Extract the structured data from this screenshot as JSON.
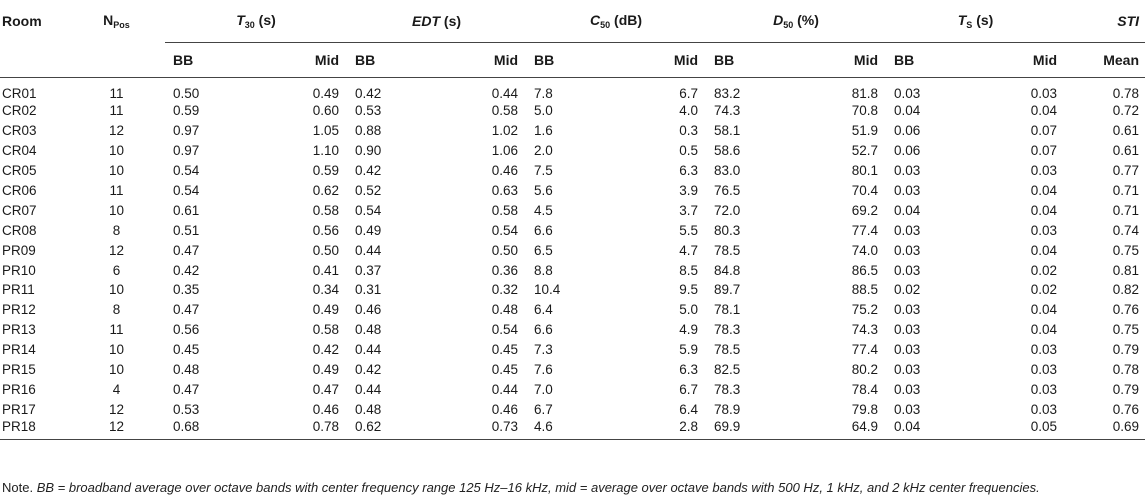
{
  "headers": {
    "room": "Room",
    "npos_main": "N",
    "npos_sub": "Pos",
    "groups": [
      {
        "key": "t30",
        "sym": "T",
        "sub": "30",
        "unit": " (s)",
        "italic": true
      },
      {
        "key": "edt",
        "sym": "EDT",
        "sub": "",
        "unit": " (s)",
        "italic": true
      },
      {
        "key": "c50",
        "sym": "C",
        "sub": "50",
        "unit": " (dB)",
        "italic": true
      },
      {
        "key": "d50",
        "sym": "D",
        "sub": "50",
        "unit": " (%)",
        "italic": true
      },
      {
        "key": "ts",
        "sym": "T",
        "sub": "S",
        "unit": " (s)",
        "italic": true
      }
    ],
    "sti": "STI",
    "bb": "BB",
    "mid": "Mid",
    "mean": "Mean"
  },
  "rows": [
    [
      "CR01",
      "11",
      "0.50",
      "0.49",
      "0.42",
      "0.44",
      "7.8",
      "6.7",
      "83.2",
      "81.8",
      "0.03",
      "0.03",
      "0.78"
    ],
    [
      "CR02",
      "11",
      "0.59",
      "0.60",
      "0.53",
      "0.58",
      "5.0",
      "4.0",
      "74.3",
      "70.8",
      "0.04",
      "0.04",
      "0.72"
    ],
    [
      "CR03",
      "12",
      "0.97",
      "1.05",
      "0.88",
      "1.02",
      "1.6",
      "0.3",
      "58.1",
      "51.9",
      "0.06",
      "0.07",
      "0.61"
    ],
    [
      "CR04",
      "10",
      "0.97",
      "1.10",
      "0.90",
      "1.06",
      "2.0",
      "0.5",
      "58.6",
      "52.7",
      "0.06",
      "0.07",
      "0.61"
    ],
    [
      "CR05",
      "10",
      "0.54",
      "0.59",
      "0.42",
      "0.46",
      "7.5",
      "6.3",
      "83.0",
      "80.1",
      "0.03",
      "0.03",
      "0.77"
    ],
    [
      "CR06",
      "11",
      "0.54",
      "0.62",
      "0.52",
      "0.63",
      "5.6",
      "3.9",
      "76.5",
      "70.4",
      "0.03",
      "0.04",
      "0.71"
    ],
    [
      "CR07",
      "10",
      "0.61",
      "0.58",
      "0.54",
      "0.58",
      "4.5",
      "3.7",
      "72.0",
      "69.2",
      "0.04",
      "0.04",
      "0.71"
    ],
    [
      "CR08",
      "8",
      "0.51",
      "0.56",
      "0.49",
      "0.54",
      "6.6",
      "5.5",
      "80.3",
      "77.4",
      "0.03",
      "0.03",
      "0.74"
    ],
    [
      "PR09",
      "12",
      "0.47",
      "0.50",
      "0.44",
      "0.50",
      "6.5",
      "4.7",
      "78.5",
      "74.0",
      "0.03",
      "0.04",
      "0.75"
    ],
    [
      "PR10",
      "6",
      "0.42",
      "0.41",
      "0.37",
      "0.36",
      "8.8",
      "8.5",
      "84.8",
      "86.5",
      "0.03",
      "0.02",
      "0.81"
    ],
    [
      "PR11",
      "10",
      "0.35",
      "0.34",
      "0.31",
      "0.32",
      "10.4",
      "9.5",
      "89.7",
      "88.5",
      "0.02",
      "0.02",
      "0.82"
    ],
    [
      "PR12",
      "8",
      "0.47",
      "0.49",
      "0.46",
      "0.48",
      "6.4",
      "5.0",
      "78.1",
      "75.2",
      "0.03",
      "0.04",
      "0.76"
    ],
    [
      "PR13",
      "11",
      "0.56",
      "0.58",
      "0.48",
      "0.54",
      "6.6",
      "4.9",
      "78.3",
      "74.3",
      "0.03",
      "0.04",
      "0.75"
    ],
    [
      "PR14",
      "10",
      "0.45",
      "0.42",
      "0.44",
      "0.45",
      "7.3",
      "5.9",
      "78.5",
      "77.4",
      "0.03",
      "0.03",
      "0.79"
    ],
    [
      "PR15",
      "10",
      "0.48",
      "0.49",
      "0.42",
      "0.45",
      "7.6",
      "6.3",
      "82.5",
      "80.2",
      "0.03",
      "0.03",
      "0.78"
    ],
    [
      "PR16",
      "4",
      "0.47",
      "0.47",
      "0.44",
      "0.44",
      "7.0",
      "6.7",
      "78.3",
      "78.4",
      "0.03",
      "0.03",
      "0.79"
    ],
    [
      "PR17",
      "12",
      "0.53",
      "0.46",
      "0.48",
      "0.46",
      "6.7",
      "6.4",
      "78.9",
      "79.8",
      "0.03",
      "0.03",
      "0.76"
    ],
    [
      "PR18",
      "12",
      "0.68",
      "0.78",
      "0.62",
      "0.73",
      "4.6",
      "2.8",
      "69.9",
      "64.9",
      "0.04",
      "0.05",
      "0.69"
    ]
  ],
  "note": {
    "prefix": "Note. ",
    "text": "BB = broadband average over octave bands with center frequency range 125 Hz–16 kHz, mid = average over octave bands with 500 Hz, 1 kHz, and 2 kHz center frequencies."
  }
}
